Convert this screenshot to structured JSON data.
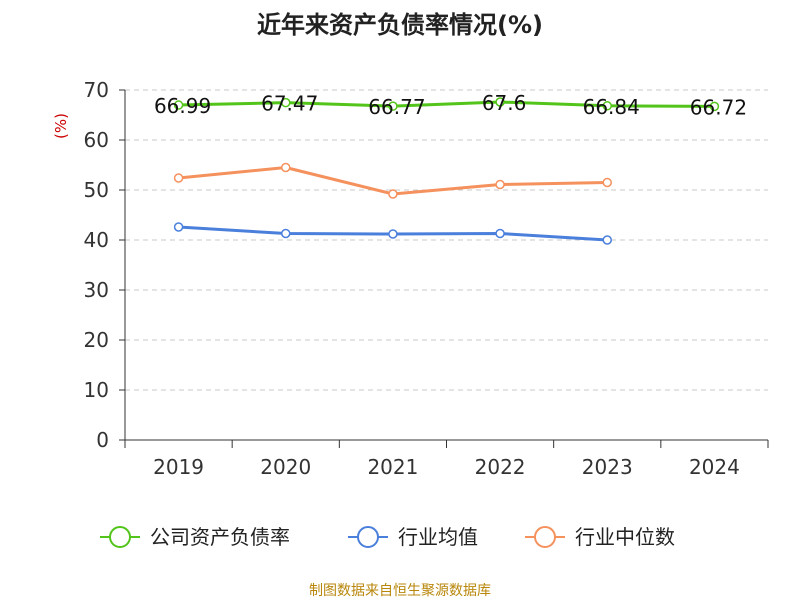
{
  "chart_data": {
    "type": "line",
    "title": "近年来资产负债率情况(%)",
    "ylabel": "(%)",
    "xlabel": "",
    "categories": [
      "2019",
      "2020",
      "2021",
      "2022",
      "2023",
      "2024"
    ],
    "ylim": [
      0,
      70
    ],
    "yticks": [
      0,
      10,
      20,
      30,
      40,
      50,
      60,
      70
    ],
    "grid": true,
    "legend_position": "bottom",
    "series": [
      {
        "name": "公司资产负债率",
        "color": "#52c41a",
        "values": [
          66.99,
          67.47,
          66.77,
          67.6,
          66.84,
          66.72
        ],
        "labels": [
          "66.99",
          "67.47",
          "66.77",
          "67.6",
          "66.84",
          "66.72"
        ]
      },
      {
        "name": "行业均值",
        "color": "#4a7fdc",
        "values": [
          42.6,
          41.3,
          41.2,
          41.3,
          40.0,
          null
        ]
      },
      {
        "name": "行业中位数",
        "color": "#f5915d",
        "values": [
          52.4,
          54.5,
          49.2,
          51.1,
          51.5,
          null
        ]
      }
    ],
    "source_note": "制图数据来自恒生聚源数据库",
    "colors": {
      "title": "#222222",
      "ylabel": "#cc0000",
      "axis": "#333333",
      "grid": "#c8c8c8",
      "source": "#b8860b"
    }
  }
}
